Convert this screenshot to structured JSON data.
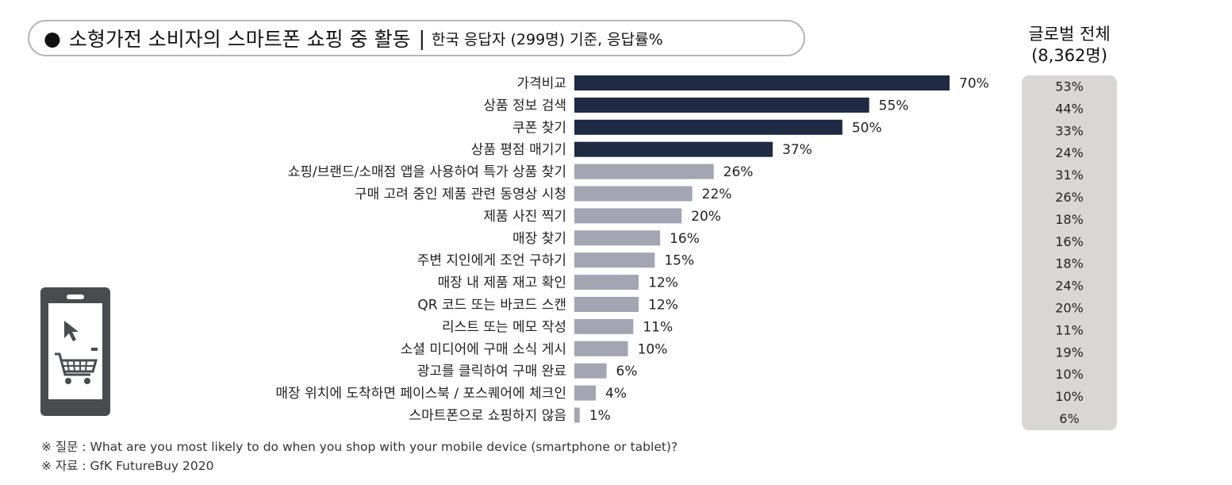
{
  "title": {
    "bullet": "●",
    "main": "소형가전 소비자의 스마트폰 쇼핑 중 활동",
    "separator": "|",
    "sub": "한국 응답자 (299명) 기준, 응답률%"
  },
  "global_header": {
    "line1": "글로벌 전체",
    "line2": "(8,362명)"
  },
  "chart_data": {
    "type": "bar",
    "orientation": "horizontal",
    "categories": [
      "가격비교",
      "상품 정보 검색",
      "쿠폰 찾기",
      "상품 평점 매기기",
      "쇼핑/브랜드/소매점 앱을 사용하여 특가 상품 찾기",
      "구매 고려 중인 제품 관련 동영상 시청",
      "제품 사진 찍기",
      "매장 찾기",
      "주변 지인에게 조언 구하기",
      "매장 내 제품 재고 확인",
      "QR 코드 또는 바코드 스캔",
      "리스트 또는 메모 작성",
      "소셜 미디어에 구매 소식 게시",
      "광고를 클릭하여 구매 완료",
      "매장 위치에 도착하면 페이스북 / 포스퀘어에 체크인",
      "스마트폰으로 쇼핑하지 않음"
    ],
    "values": [
      70,
      55,
      50,
      37,
      26,
      22,
      20,
      16,
      15,
      12,
      12,
      11,
      10,
      6,
      4,
      1
    ],
    "value_labels": [
      "70%",
      "55%",
      "50%",
      "37%",
      "26%",
      "22%",
      "20%",
      "16%",
      "15%",
      "12%",
      "12%",
      "11%",
      "10%",
      "6%",
      "4%",
      "1%"
    ],
    "global_values": [
      53,
      44,
      33,
      24,
      31,
      26,
      18,
      16,
      18,
      24,
      20,
      11,
      19,
      10,
      10,
      6
    ],
    "global_labels": [
      "53%",
      "44%",
      "33%",
      "24%",
      "31%",
      "26%",
      "18%",
      "16%",
      "18%",
      "24%",
      "20%",
      "11%",
      "19%",
      "10%",
      "10%",
      "6%"
    ],
    "highlight_count": 4,
    "colors": {
      "highlight": "#1f2a44",
      "normal": "#a3a5b2"
    },
    "xlim": [
      0,
      100
    ],
    "grid": false
  },
  "phone_icon": {
    "name": "smartphone-shopping-cart-icon",
    "color": "#4a4b4f"
  },
  "footnotes": {
    "question": "※ 질문 :  What are you most likely to do when you shop with your mobile device (smartphone or tablet)?",
    "source": "※ 자료 : GfK FutureBuy 2020"
  }
}
